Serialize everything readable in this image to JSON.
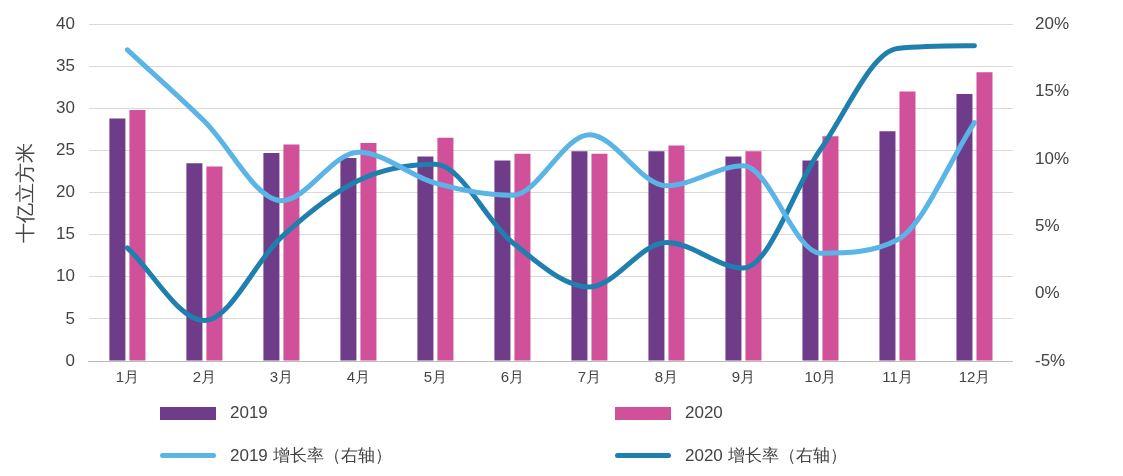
{
  "chart_data": {
    "type": "bar",
    "ylabel": "十亿立方米",
    "categories": [
      "1月",
      "2月",
      "3月",
      "4月",
      "5月",
      "6月",
      "7月",
      "8月",
      "9月",
      "10月",
      "11月",
      "12月"
    ],
    "series": [
      {
        "name": "2019",
        "color": "#6f3c8a",
        "values": [
          28.8,
          23.5,
          24.7,
          24.1,
          24.3,
          23.8,
          24.9,
          24.9,
          24.3,
          23.8,
          27.3,
          31.7
        ]
      },
      {
        "name": "2020",
        "color": "#d0509a",
        "values": [
          29.8,
          23.1,
          25.7,
          25.9,
          26.5,
          24.6,
          24.6,
          25.6,
          24.9,
          26.7,
          32.0,
          34.3
        ]
      },
      {
        "name": "2019 增长率（右轴）",
        "type": "line",
        "axis": "y2",
        "color": "#5ab4e5",
        "values": [
          18.1,
          12.8,
          6.9,
          10.5,
          8.2,
          7.3,
          11.8,
          8.0,
          9.5,
          3.0,
          4.0,
          12.7
        ]
      },
      {
        "name": "2020 增长率（右轴）",
        "type": "line",
        "axis": "y2",
        "color": "#1f7fae",
        "values": [
          3.4,
          -2.0,
          4.2,
          8.4,
          9.6,
          3.8,
          0.5,
          3.8,
          1.9,
          10.7,
          18.2,
          18.4
        ]
      }
    ],
    "ylim": [
      0,
      40
    ],
    "yticks": [
      0,
      5,
      10,
      15,
      20,
      25,
      30,
      35,
      40
    ],
    "y2lim": [
      -5,
      20
    ],
    "y2ticks": [
      {
        "value": -5,
        "label": "-5%"
      },
      {
        "value": 0,
        "label": "0%"
      },
      {
        "value": 5,
        "label": "5%"
      },
      {
        "value": 10,
        "label": "10%"
      },
      {
        "value": 15,
        "label": "15%"
      },
      {
        "value": 20,
        "label": "20%"
      }
    ],
    "grid": "y",
    "legend": "bottom",
    "marker": "none"
  }
}
